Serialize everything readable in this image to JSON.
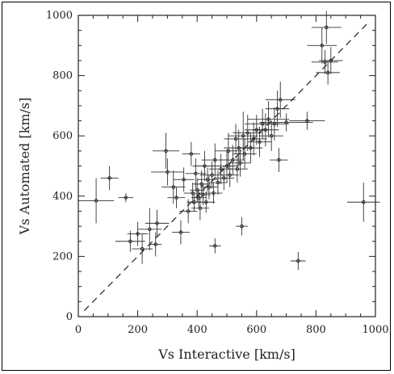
{
  "chart_data": {
    "type": "scatter",
    "title": "",
    "xlabel": "Vs Interactive [km/s]",
    "ylabel": "Vs Automated [km/s]",
    "xlim": [
      0,
      1000
    ],
    "ylim": [
      0,
      1000
    ],
    "xticks": [
      0,
      200,
      400,
      600,
      800,
      1000
    ],
    "yticks": [
      0,
      200,
      400,
      600,
      800,
      1000
    ],
    "xtick_labels": [
      "0",
      "200",
      "400",
      "600",
      "800",
      "1000"
    ],
    "ytick_labels": [
      "0",
      "200",
      "400",
      "600",
      "800",
      "1000"
    ],
    "grid": false,
    "reference_line": "y = x (dashed)",
    "points": [
      [
        60,
        385,
        60,
        75
      ],
      [
        105,
        460,
        30,
        40
      ],
      [
        160,
        395,
        25,
        15
      ],
      [
        175,
        250,
        50,
        35
      ],
      [
        200,
        275,
        35,
        40
      ],
      [
        215,
        225,
        35,
        50
      ],
      [
        240,
        290,
        40,
        70
      ],
      [
        260,
        240,
        20,
        40
      ],
      [
        265,
        310,
        40,
        45
      ],
      [
        295,
        550,
        45,
        60
      ],
      [
        300,
        480,
        55,
        45
      ],
      [
        320,
        430,
        40,
        55
      ],
      [
        330,
        395,
        30,
        35
      ],
      [
        345,
        280,
        30,
        40
      ],
      [
        355,
        455,
        35,
        40
      ],
      [
        370,
        350,
        30,
        40
      ],
      [
        380,
        540,
        30,
        40
      ],
      [
        385,
        410,
        30,
        35
      ],
      [
        390,
        380,
        25,
        30
      ],
      [
        395,
        475,
        35,
        50
      ],
      [
        400,
        420,
        25,
        40
      ],
      [
        405,
        395,
        25,
        30
      ],
      [
        410,
        360,
        30,
        40
      ],
      [
        415,
        440,
        30,
        45
      ],
      [
        420,
        405,
        25,
        35
      ],
      [
        425,
        500,
        40,
        50
      ],
      [
        430,
        380,
        30,
        35
      ],
      [
        435,
        455,
        35,
        40
      ],
      [
        440,
        430,
        30,
        40
      ],
      [
        450,
        470,
        40,
        45
      ],
      [
        455,
        410,
        30,
        35
      ],
      [
        460,
        520,
        45,
        55
      ],
      [
        460,
        235,
        20,
        25
      ],
      [
        470,
        445,
        30,
        40
      ],
      [
        480,
        490,
        40,
        50
      ],
      [
        490,
        460,
        35,
        40
      ],
      [
        500,
        500,
        40,
        55
      ],
      [
        505,
        550,
        45,
        60
      ],
      [
        510,
        470,
        30,
        40
      ],
      [
        520,
        520,
        40,
        50
      ],
      [
        530,
        590,
        40,
        50
      ],
      [
        535,
        490,
        35,
        45
      ],
      [
        540,
        560,
        50,
        60
      ],
      [
        545,
        510,
        35,
        45
      ],
      [
        550,
        300,
        20,
        30
      ],
      [
        555,
        600,
        50,
        80
      ],
      [
        560,
        540,
        40,
        50
      ],
      [
        570,
        610,
        50,
        60
      ],
      [
        580,
        560,
        40,
        50
      ],
      [
        590,
        590,
        45,
        55
      ],
      [
        600,
        620,
        40,
        50
      ],
      [
        610,
        580,
        40,
        50
      ],
      [
        620,
        640,
        60,
        50
      ],
      [
        630,
        620,
        45,
        55
      ],
      [
        640,
        655,
        70,
        60
      ],
      [
        650,
        600,
        40,
        50
      ],
      [
        660,
        640,
        50,
        55
      ],
      [
        670,
        690,
        40,
        60
      ],
      [
        675,
        520,
        30,
        40
      ],
      [
        680,
        720,
        50,
        60
      ],
      [
        700,
        645,
        90,
        30
      ],
      [
        740,
        185,
        25,
        30
      ],
      [
        770,
        650,
        60,
        30
      ],
      [
        820,
        900,
        50,
        60
      ],
      [
        830,
        845,
        45,
        40
      ],
      [
        835,
        960,
        50,
        55
      ],
      [
        840,
        810,
        40,
        40
      ],
      [
        850,
        850,
        40,
        45
      ],
      [
        960,
        380,
        55,
        65
      ]
    ]
  }
}
